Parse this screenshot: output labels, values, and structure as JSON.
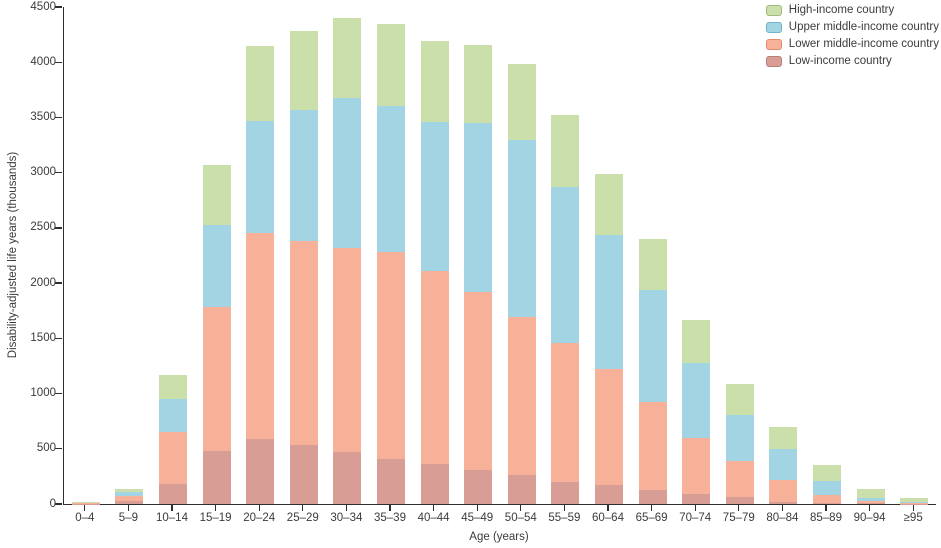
{
  "chart_data": {
    "type": "bar",
    "stacked": true,
    "title": "",
    "xlabel": "Age (years)",
    "ylabel": "Disability-adjusted life years (thousands)",
    "ylim": [
      0,
      4500
    ],
    "yticks": [
      0,
      500,
      1000,
      1500,
      2000,
      2500,
      3000,
      3500,
      4000,
      4500
    ],
    "grid": false,
    "legend_position": "top-right",
    "categories": [
      "0–4",
      "5–9",
      "10–14",
      "15–19",
      "20–24",
      "25–29",
      "30–34",
      "35–39",
      "40–44",
      "45–49",
      "50–54",
      "55–59",
      "60–64",
      "65–69",
      "70–74",
      "75–79",
      "80–84",
      "85–89",
      "90–94",
      "≥95"
    ],
    "series": [
      {
        "name": "Low-income country",
        "fill": "#d89e96",
        "border": "#b97e77",
        "values": [
          3,
          30,
          180,
          480,
          590,
          530,
          470,
          410,
          360,
          310,
          260,
          200,
          170,
          130,
          95,
          60,
          20,
          8,
          5,
          2
        ]
      },
      {
        "name": "Lower middle-income country",
        "fill": "#f8b199",
        "border": "#de8d6c",
        "values": [
          7,
          40,
          470,
          1300,
          1860,
          1850,
          1850,
          1870,
          1750,
          1610,
          1430,
          1260,
          1050,
          790,
          505,
          330,
          200,
          77,
          20,
          5
        ]
      },
      {
        "name": "Upper middle-income country",
        "fill": "#a2d4e4",
        "border": "#72b3cc",
        "values": [
          5,
          35,
          300,
          750,
          1020,
          1190,
          1360,
          1320,
          1350,
          1530,
          1610,
          1410,
          1220,
          1020,
          680,
          420,
          280,
          125,
          30,
          8
        ]
      },
      {
        "name": "High-income country",
        "fill": "#cbdfab",
        "border": "#a1ba7c",
        "values": [
          5,
          30,
          220,
          540,
          680,
          710,
          720,
          750,
          730,
          710,
          680,
          650,
          550,
          460,
          390,
          280,
          200,
          140,
          85,
          35
        ]
      }
    ],
    "totals": [
      20,
      135,
      1170,
      3070,
      4150,
      4280,
      4400,
      4350,
      4190,
      4160,
      3980,
      3520,
      2990,
      2400,
      1670,
      1090,
      700,
      350,
      140,
      50
    ]
  },
  "axes": {
    "y_title": "Disability-adjusted life years (thousands)",
    "x_title": "Age (years)"
  },
  "colors": {
    "axis": "#2e2e2e",
    "text": "#3b3b3b",
    "background": "#ffffff"
  }
}
